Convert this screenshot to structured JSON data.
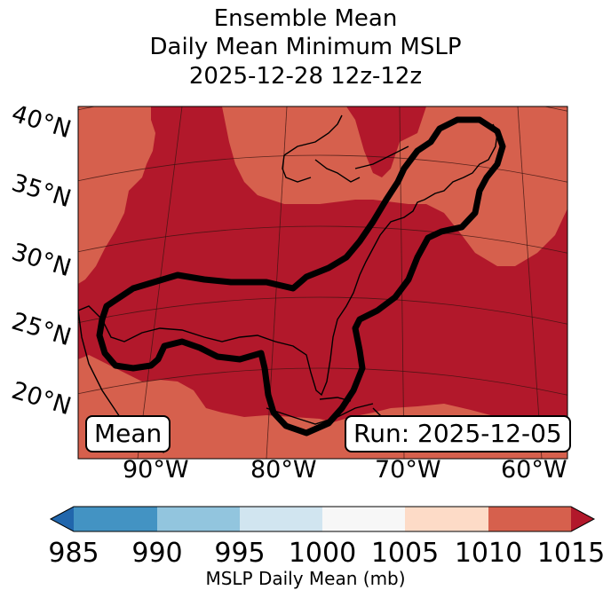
{
  "title": {
    "line1": "Ensemble Mean",
    "line2": "Daily Mean Minimum MSLP",
    "line3": "2025-12-28 12z-12z"
  },
  "map": {
    "lat_labels": [
      "40°N",
      "35°N",
      "30°N",
      "25°N",
      "20°N"
    ],
    "lon_labels": [
      "90°W",
      "80°W",
      "70°W",
      "60°W"
    ],
    "left_box": "Mean",
    "right_box": "Run: 2025-12-05",
    "colors": {
      "band_1010_1015": "#d6604d",
      "band_ge_1015": "#b2182b",
      "coastline": "#000000",
      "contour": "#000000"
    }
  },
  "colorbar": {
    "label": "MSLP Daily Mean (mb)",
    "ticks": [
      "985",
      "990",
      "995",
      "1000",
      "1005",
      "1010",
      "1015"
    ],
    "colors": [
      "#2166ac",
      "#4393c3",
      "#92c5de",
      "#d1e5f0",
      "#f7f7f7",
      "#fddbc7",
      "#d6604d",
      "#b2182b"
    ]
  }
}
